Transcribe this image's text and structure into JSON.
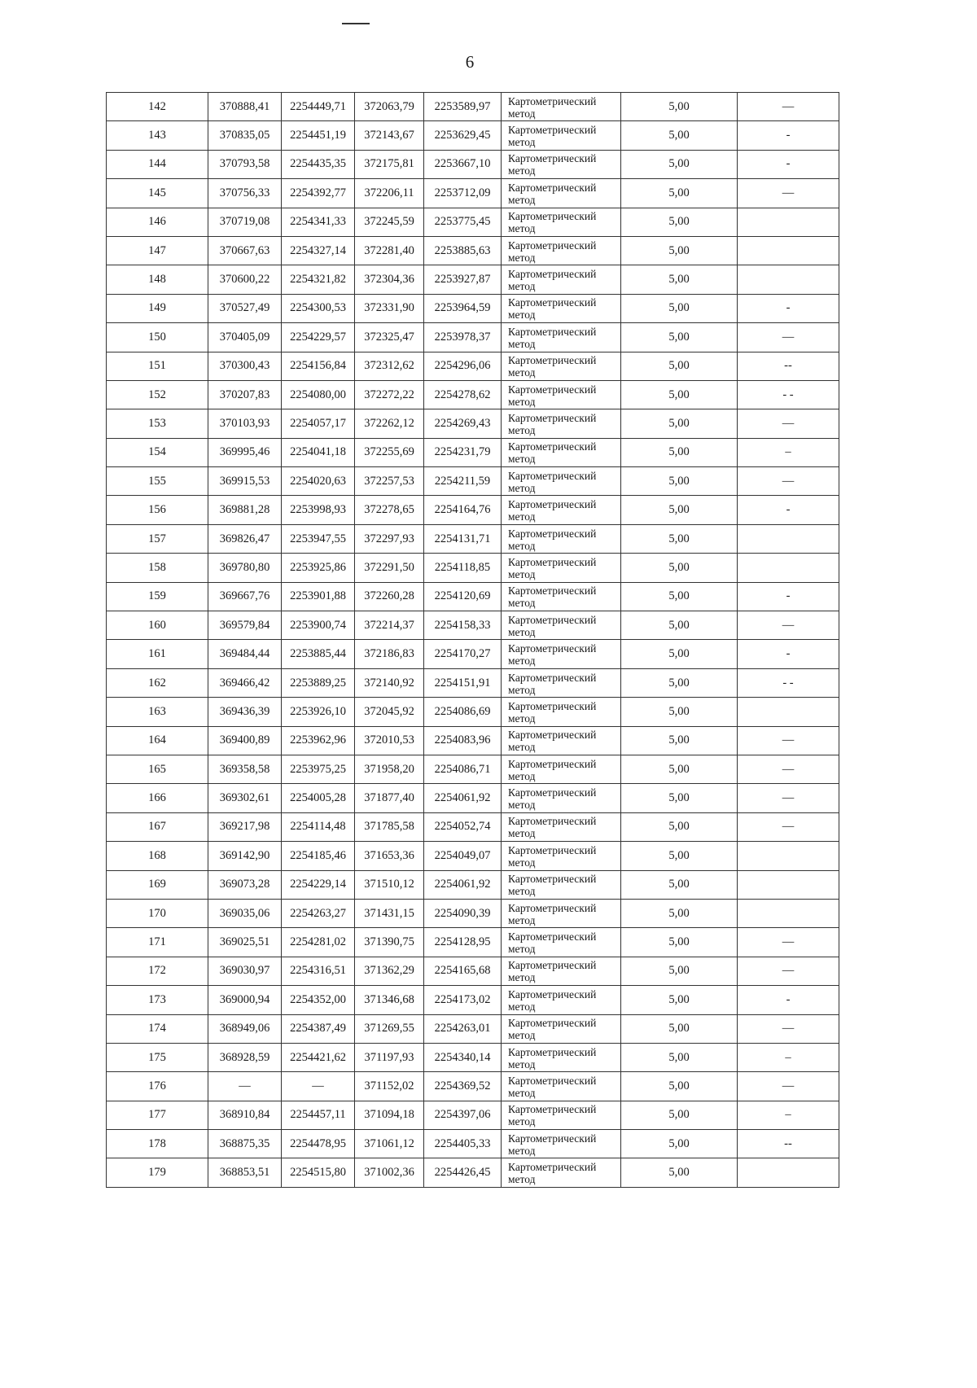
{
  "page_number": "6",
  "method_line1": "Картометрический",
  "method_line2": "метод",
  "rows": [
    {
      "n": "142",
      "x1": "370888,41",
      "y1": "2254449,71",
      "x2": "372063,79",
      "y2": "2253589,97",
      "acc": "5,00",
      "note": "—"
    },
    {
      "n": "143",
      "x1": "370835,05",
      "y1": "2254451,19",
      "x2": "372143,67",
      "y2": "2253629,45",
      "acc": "5,00",
      "note": "-"
    },
    {
      "n": "144",
      "x1": "370793,58",
      "y1": "2254435,35",
      "x2": "372175,81",
      "y2": "2253667,10",
      "acc": "5,00",
      "note": "-"
    },
    {
      "n": "145",
      "x1": "370756,33",
      "y1": "2254392,77",
      "x2": "372206,11",
      "y2": "2253712,09",
      "acc": "5,00",
      "note": "—"
    },
    {
      "n": "146",
      "x1": "370719,08",
      "y1": "2254341,33",
      "x2": "372245,59",
      "y2": "2253775,45",
      "acc": "5,00",
      "note": ""
    },
    {
      "n": "147",
      "x1": "370667,63",
      "y1": "2254327,14",
      "x2": "372281,40",
      "y2": "2253885,63",
      "acc": "5,00",
      "note": ""
    },
    {
      "n": "148",
      "x1": "370600,22",
      "y1": "2254321,82",
      "x2": "372304,36",
      "y2": "2253927,87",
      "acc": "5,00",
      "note": ""
    },
    {
      "n": "149",
      "x1": "370527,49",
      "y1": "2254300,53",
      "x2": "372331,90",
      "y2": "2253964,59",
      "acc": "5,00",
      "note": "-"
    },
    {
      "n": "150",
      "x1": "370405,09",
      "y1": "2254229,57",
      "x2": "372325,47",
      "y2": "2253978,37",
      "acc": "5,00",
      "note": "—"
    },
    {
      "n": "151",
      "x1": "370300,43",
      "y1": "2254156,84",
      "x2": "372312,62",
      "y2": "2254296,06",
      "acc": "5,00",
      "note": "--"
    },
    {
      "n": "152",
      "x1": "370207,83",
      "y1": "2254080,00",
      "x2": "372272,22",
      "y2": "2254278,62",
      "acc": "5,00",
      "note": "- -"
    },
    {
      "n": "153",
      "x1": "370103,93",
      "y1": "2254057,17",
      "x2": "372262,12",
      "y2": "2254269,43",
      "acc": "5,00",
      "note": "—"
    },
    {
      "n": "154",
      "x1": "369995,46",
      "y1": "2254041,18",
      "x2": "372255,69",
      "y2": "2254231,79",
      "acc": "5,00",
      "note": "–"
    },
    {
      "n": "155",
      "x1": "369915,53",
      "y1": "2254020,63",
      "x2": "372257,53",
      "y2": "2254211,59",
      "acc": "5,00",
      "note": "—"
    },
    {
      "n": "156",
      "x1": "369881,28",
      "y1": "2253998,93",
      "x2": "372278,65",
      "y2": "2254164,76",
      "acc": "5,00",
      "note": "-"
    },
    {
      "n": "157",
      "x1": "369826,47",
      "y1": "2253947,55",
      "x2": "372297,93",
      "y2": "2254131,71",
      "acc": "5,00",
      "note": ""
    },
    {
      "n": "158",
      "x1": "369780,80",
      "y1": "2253925,86",
      "x2": "372291,50",
      "y2": "2254118,85",
      "acc": "5,00",
      "note": ""
    },
    {
      "n": "159",
      "x1": "369667,76",
      "y1": "2253901,88",
      "x2": "372260,28",
      "y2": "2254120,69",
      "acc": "5,00",
      "note": "-"
    },
    {
      "n": "160",
      "x1": "369579,84",
      "y1": "2253900,74",
      "x2": "372214,37",
      "y2": "2254158,33",
      "acc": "5,00",
      "note": "—"
    },
    {
      "n": "161",
      "x1": "369484,44",
      "y1": "2253885,44",
      "x2": "372186,83",
      "y2": "2254170,27",
      "acc": "5,00",
      "note": "-"
    },
    {
      "n": "162",
      "x1": "369466,42",
      "y1": "2253889,25",
      "x2": "372140,92",
      "y2": "2254151,91",
      "acc": "5,00",
      "note": "- -"
    },
    {
      "n": "163",
      "x1": "369436,39",
      "y1": "2253926,10",
      "x2": "372045,92",
      "y2": "2254086,69",
      "acc": "5,00",
      "note": ""
    },
    {
      "n": "164",
      "x1": "369400,89",
      "y1": "2253962,96",
      "x2": "372010,53",
      "y2": "2254083,96",
      "acc": "5,00",
      "note": "—"
    },
    {
      "n": "165",
      "x1": "369358,58",
      "y1": "2253975,25",
      "x2": "371958,20",
      "y2": "2254086,71",
      "acc": "5,00",
      "note": "—"
    },
    {
      "n": "166",
      "x1": "369302,61",
      "y1": "2254005,28",
      "x2": "371877,40",
      "y2": "2254061,92",
      "acc": "5,00",
      "note": "—"
    },
    {
      "n": "167",
      "x1": "369217,98",
      "y1": "2254114,48",
      "x2": "371785,58",
      "y2": "2254052,74",
      "acc": "5,00",
      "note": "—"
    },
    {
      "n": "168",
      "x1": "369142,90",
      "y1": "2254185,46",
      "x2": "371653,36",
      "y2": "2254049,07",
      "acc": "5,00",
      "note": ""
    },
    {
      "n": "169",
      "x1": "369073,28",
      "y1": "2254229,14",
      "x2": "371510,12",
      "y2": "2254061,92",
      "acc": "5,00",
      "note": ""
    },
    {
      "n": "170",
      "x1": "369035,06",
      "y1": "2254263,27",
      "x2": "371431,15",
      "y2": "2254090,39",
      "acc": "5,00",
      "note": ""
    },
    {
      "n": "171",
      "x1": "369025,51",
      "y1": "2254281,02",
      "x2": "371390,75",
      "y2": "2254128,95",
      "acc": "5,00",
      "note": "—"
    },
    {
      "n": "172",
      "x1": "369030,97",
      "y1": "2254316,51",
      "x2": "371362,29",
      "y2": "2254165,68",
      "acc": "5,00",
      "note": "—"
    },
    {
      "n": "173",
      "x1": "369000,94",
      "y1": "2254352,00",
      "x2": "371346,68",
      "y2": "2254173,02",
      "acc": "5,00",
      "note": "-"
    },
    {
      "n": "174",
      "x1": "368949,06",
      "y1": "2254387,49",
      "x2": "371269,55",
      "y2": "2254263,01",
      "acc": "5,00",
      "note": "—"
    },
    {
      "n": "175",
      "x1": "368928,59",
      "y1": "2254421,62",
      "x2": "371197,93",
      "y2": "2254340,14",
      "acc": "5,00",
      "note": "–"
    },
    {
      "n": "176",
      "x1": "—",
      "y1": "—",
      "x2": "371152,02",
      "y2": "2254369,52",
      "acc": "5,00",
      "note": "—"
    },
    {
      "n": "177",
      "x1": "368910,84",
      "y1": "2254457,11",
      "x2": "371094,18",
      "y2": "2254397,06",
      "acc": "5,00",
      "note": "–"
    },
    {
      "n": "178",
      "x1": "368875,35",
      "y1": "2254478,95",
      "x2": "371061,12",
      "y2": "2254405,33",
      "acc": "5,00",
      "note": "--"
    },
    {
      "n": "179",
      "x1": "368853,51",
      "y1": "2254515,80",
      "x2": "371002,36",
      "y2": "2254426,45",
      "acc": "5,00",
      "note": ""
    }
  ]
}
